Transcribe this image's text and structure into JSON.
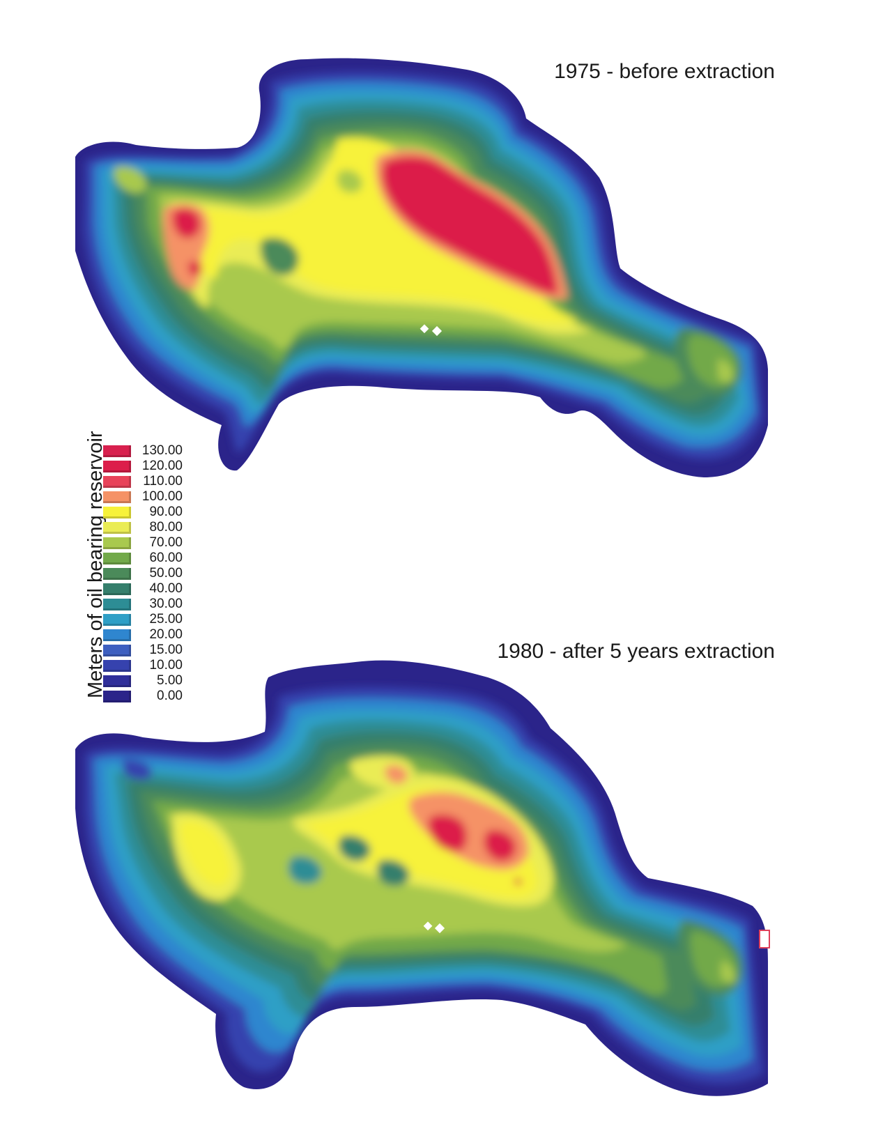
{
  "maps": [
    {
      "id": "top",
      "title": "1975 - before extraction"
    },
    {
      "id": "bottom",
      "title": "1980 - after 5 years extraction"
    }
  ],
  "legend": {
    "title": "Meters of oil bearing reservoir",
    "items": [
      {
        "label": "130.00",
        "color": "#d8204e"
      },
      {
        "label": "120.00",
        "color": "#dc1e4a"
      },
      {
        "label": "110.00",
        "color": "#e8435a"
      },
      {
        "label": "100.00",
        "color": "#f59266"
      },
      {
        "label": "90.00",
        "color": "#f7f23a"
      },
      {
        "label": "80.00",
        "color": "#eaec55"
      },
      {
        "label": "70.00",
        "color": "#a9c94e"
      },
      {
        "label": "60.00",
        "color": "#72a94a"
      },
      {
        "label": "50.00",
        "color": "#4b8a5a"
      },
      {
        "label": "40.00",
        "color": "#357f6c"
      },
      {
        "label": "30.00",
        "color": "#2d8d95"
      },
      {
        "label": "25.00",
        "color": "#2f9fc6"
      },
      {
        "label": "20.00",
        "color": "#2f86cf"
      },
      {
        "label": "15.00",
        "color": "#3d5fc0"
      },
      {
        "label": "10.00",
        "color": "#3642ae"
      },
      {
        "label": "5.00",
        "color": "#302f9a"
      },
      {
        "label": "0.00",
        "color": "#2b248a"
      }
    ]
  }
}
